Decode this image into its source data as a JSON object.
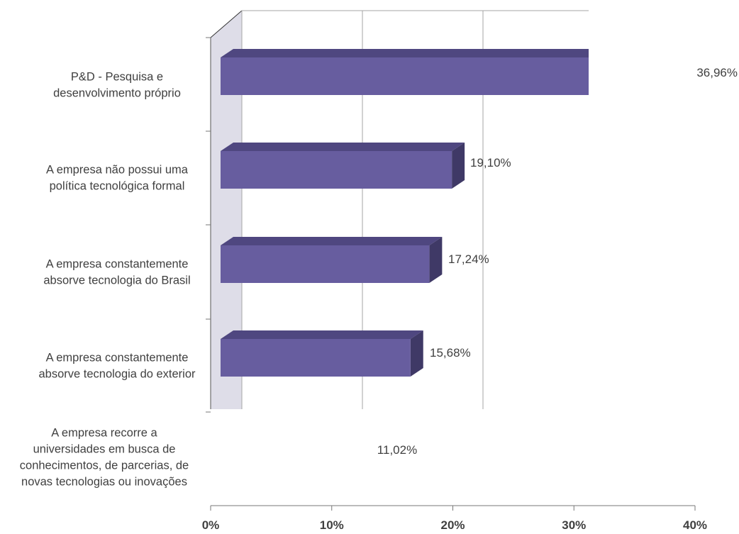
{
  "chart_data": {
    "type": "bar",
    "orientation": "horizontal",
    "style": "3d",
    "categories": [
      [
        "P&D - Pesquisa e",
        "desenvolvimento próprio"
      ],
      [
        "A empresa não possui uma",
        "política tecnológica formal"
      ],
      [
        "A empresa constantemente",
        "absorve tecnologia do Brasil"
      ],
      [
        "A empresa constantemente",
        "absorve tecnologia do exterior"
      ],
      [
        "A empresa recorre a",
        "universidades em busca de",
        "conhecimentos, de parcerias, de",
        "novas tecnologias ou inovações"
      ]
    ],
    "values": [
      36.96,
      19.1,
      17.24,
      15.68,
      11.02
    ],
    "value_labels": [
      "36,96%",
      "19,10%",
      "17,24%",
      "15,68%",
      "11,02%"
    ],
    "x_ticks": [
      "0%",
      "10%",
      "20%",
      "30%",
      "40%"
    ],
    "xlim": [
      0,
      40
    ],
    "grid": true,
    "colors": {
      "bar_front": "#675d9f",
      "bar_top": "#4f4780",
      "bar_side": "#3f3966",
      "wall": "#dedde8",
      "grid": "#a6a6a6",
      "text": "#404040"
    }
  }
}
